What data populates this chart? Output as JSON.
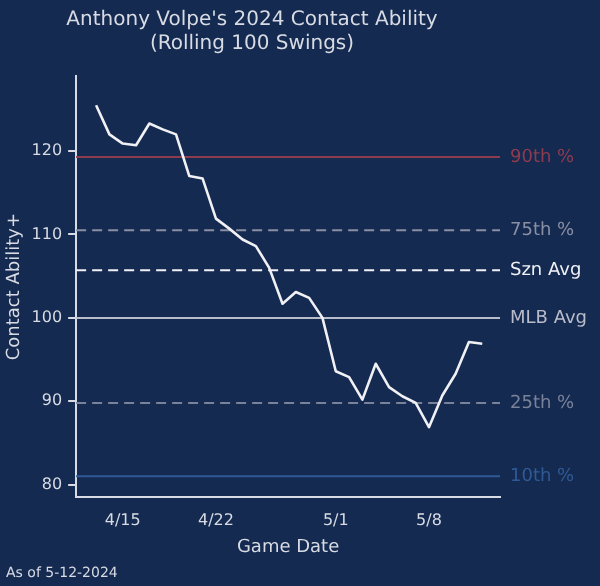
{
  "chart_data": {
    "type": "line",
    "title": "Anthony Volpe's 2024 Contact Ability",
    "subtitle": "(Rolling 100 Swings)",
    "xlabel": "Game Date",
    "ylabel": "Contact Ability+",
    "x": [
      "2024-04-13",
      "2024-04-14",
      "2024-04-15",
      "2024-04-16",
      "2024-04-17",
      "2024-04-18",
      "2024-04-19",
      "2024-04-20",
      "2024-04-21",
      "2024-04-22",
      "2024-04-23",
      "2024-04-24",
      "2024-04-25",
      "2024-04-26",
      "2024-04-27",
      "2024-04-28",
      "2024-04-29",
      "2024-04-30",
      "2024-05-01",
      "2024-05-02",
      "2024-05-03",
      "2024-05-04",
      "2024-05-05",
      "2024-05-06",
      "2024-05-07",
      "2024-05-08",
      "2024-05-09",
      "2024-05-10",
      "2024-05-11",
      "2024-05-12"
    ],
    "series": [
      {
        "color": "#f0f0f5",
        "values": [
          125.5,
          122,
          120.9,
          120.7,
          123.3,
          122.6,
          122,
          117,
          116.7,
          111.9,
          110.7,
          109.4,
          108.6,
          106,
          101.7,
          103.1,
          102.4,
          100,
          93.6,
          92.9,
          90.2,
          94.5,
          91.7,
          90.6,
          89.8,
          86.9,
          90.7,
          93.3,
          97.1,
          96.9
        ]
      }
    ],
    "xlim": [
      "2024-04-11T12:00",
      "2024-05-13T08:00"
    ],
    "xticks": [
      {
        "value": "2024-04-15",
        "label": "4/15"
      },
      {
        "value": "2024-04-22",
        "label": "4/22"
      },
      {
        "value": "2024-05-01",
        "label": "5/1"
      },
      {
        "value": "2024-05-08",
        "label": "5/8"
      }
    ],
    "ylim": [
      78.5,
      129
    ],
    "yticks": [
      80,
      90,
      100,
      110,
      120
    ],
    "ref_lines": [
      {
        "axis": "y",
        "value": 119.3,
        "label": "90th %",
        "color": "#8e3b50",
        "line_style": "solid"
      },
      {
        "axis": "y",
        "value": 110.5,
        "label": "75th %",
        "color": "#8a8fa3",
        "line_style": "dashed"
      },
      {
        "axis": "y",
        "value": 105.7,
        "label": "Szn Avg",
        "color": "#f0f0f5",
        "line_style": "dashed"
      },
      {
        "axis": "y",
        "value": 100,
        "label": "MLB Avg",
        "color": "#b8bccb",
        "line_style": "solid"
      },
      {
        "axis": "y",
        "value": 89.8,
        "label": "25th %",
        "color": "#7a8299",
        "line_style": "dashed"
      },
      {
        "axis": "y",
        "value": 81,
        "label": "10th %",
        "color": "#2f5a96",
        "line_style": "solid"
      }
    ],
    "annotations": [
      "As of 5-12-2024"
    ],
    "grid": false,
    "legend": false,
    "marker": "none",
    "line_style": "solid"
  }
}
